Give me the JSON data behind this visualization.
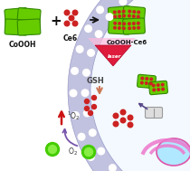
{
  "bg_color": "#ffffff",
  "nanosheet_green": "#66cc00",
  "nanosheet_dark": "#338800",
  "dots_red": "#cc2222",
  "laser_red": "#dd1133",
  "laser_pink": "#ffaacc",
  "arrow_color": "#111111",
  "singlet_arrow_color": "#cc1111",
  "o2_color": "#44cc00",
  "gsh_arrow_color": "#bb6644",
  "curve_arrow_color": "#7755aa",
  "mem_color": "#aaaadd",
  "mem_dot_color": "#ffffff",
  "cell_bg": "#d0eeff",
  "nucleus_fill": "#b0e8ff",
  "nucleus_edge": "#dd55aa",
  "mitochondria_color": "#ee77cc",
  "pill_color": "#bbbbcc",
  "text_coooh": "CoOOH",
  "text_ce6": "Ce6",
  "text_coooh_ce6": "CoOOH-Ce6",
  "text_gsh": "GSH",
  "text_laser": "laser",
  "figsize": [
    2.1,
    1.89
  ],
  "dpi": 100
}
